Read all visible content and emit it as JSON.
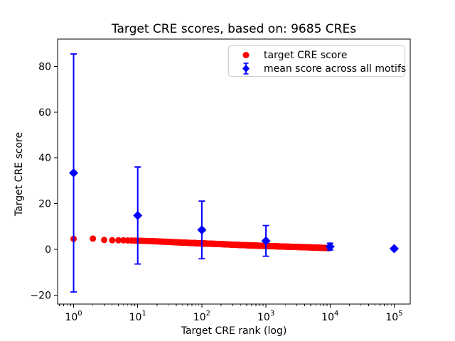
{
  "title": "Target CRE scores, based on: 9685 CREs",
  "chart_data": {
    "type": "scatter",
    "title": "Target CRE scores, based on: 9685 CREs",
    "xlabel": "Target CRE rank (log)",
    "ylabel": "Target CRE score",
    "x_scale": "log",
    "grid": false,
    "legend_position": "upper right",
    "xlim": [
      0.5623,
      177828
    ],
    "ylim": [
      -23.9,
      91.9
    ],
    "x_tick_exponents": [
      0,
      1,
      2,
      3,
      4,
      5
    ],
    "x_tick_base": "10",
    "y_ticks": [
      -20,
      0,
      20,
      40,
      60,
      80
    ],
    "y_tick_labels": [
      "−20",
      "0",
      "20",
      "40",
      "60",
      "80"
    ],
    "series": [
      {
        "name": "target CRE score",
        "color": "#ff0000",
        "marker": "circle",
        "n_points": 9685,
        "curve_samples": {
          "rank": [
            1,
            2,
            3,
            4,
            6,
            10,
            20,
            40,
            100,
            200,
            400,
            1000,
            2000,
            4000,
            7000,
            9685
          ],
          "score": [
            4.6,
            4.7,
            4.1,
            4.0,
            3.95,
            3.8,
            3.5,
            3.1,
            2.6,
            2.3,
            1.9,
            1.5,
            1.2,
            0.95,
            0.7,
            0.55
          ]
        }
      },
      {
        "name": "mean score across all motifs",
        "color": "#0000ff",
        "marker": "diamond",
        "rank": [
          1,
          10,
          100,
          1000,
          10000,
          100000
        ],
        "mean": [
          33.4,
          14.8,
          8.5,
          3.7,
          1.2,
          0.3
        ],
        "err": [
          52.0,
          21.2,
          12.6,
          6.7,
          1.5,
          0.4
        ]
      }
    ]
  },
  "colors": {
    "target_series": "#ff0000",
    "mean_series": "#0000ff",
    "axis": "#000000",
    "legend_border": "#cccccc",
    "background": "#ffffff"
  }
}
